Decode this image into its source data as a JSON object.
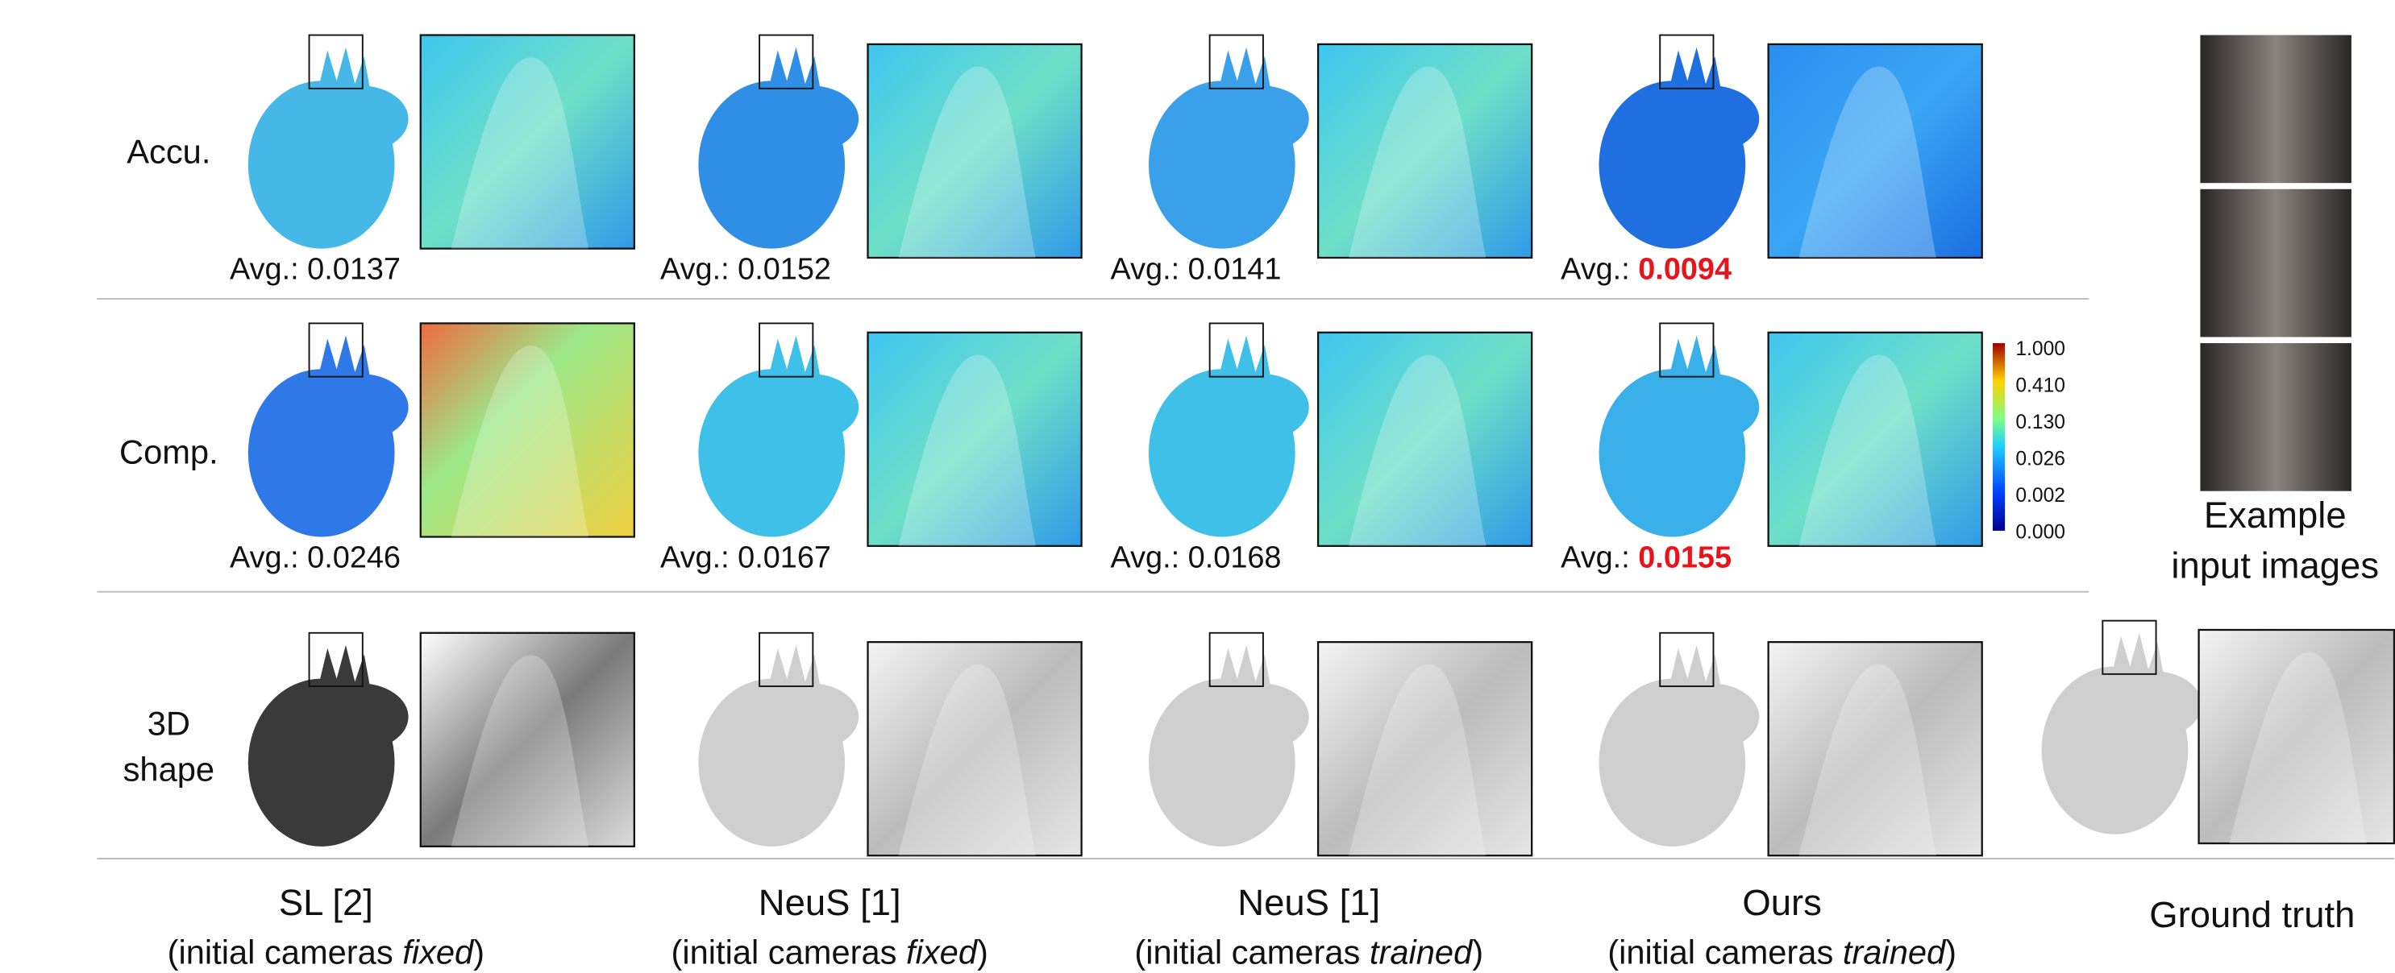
{
  "rows": [
    {
      "label": [
        "Accu."
      ],
      "avg": [
        "0.0137",
        "0.0152",
        "0.0141",
        "0.0094"
      ]
    },
    {
      "label": [
        "Comp."
      ],
      "avg": [
        "0.0246",
        "0.0167",
        "0.0168",
        "0.0155"
      ]
    },
    {
      "label": [
        "3D",
        "shape"
      ]
    }
  ],
  "avg_prefix": "Avg.:",
  "colorbar_ticks": [
    "1.000",
    "0.410",
    "0.130",
    "0.026",
    "0.002",
    "0.000"
  ],
  "columns": [
    {
      "method": "SL [2]",
      "note": [
        "(initial cameras ",
        "fixed",
        ")"
      ]
    },
    {
      "method": "NeuS [1]",
      "note": [
        "(initial cameras ",
        "fixed",
        ")"
      ]
    },
    {
      "method": "NeuS [1]",
      "note": [
        "(initial cameras ",
        "trained",
        ")"
      ]
    },
    {
      "method": "Ours",
      "note": [
        "(initial cameras ",
        "trained",
        ")"
      ]
    },
    {
      "method": "Ground truth"
    }
  ],
  "example_label": [
    "Example",
    "input images"
  ]
}
